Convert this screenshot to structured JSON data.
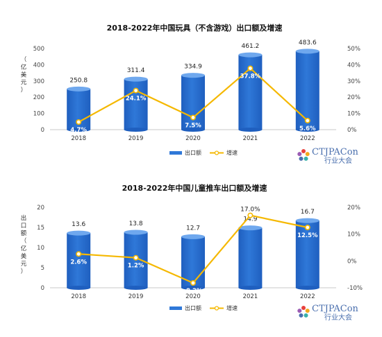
{
  "colors": {
    "bar_top": "#6fa8ee",
    "bar_body": "#2f78d8",
    "bar_dark": "#1f5fbf",
    "line": "#f5b800",
    "marker_fill": "#ffffff",
    "logo": "#4a6fae"
  },
  "logo": {
    "name": "CTJPACon",
    "subtitle": "行业大会"
  },
  "chart_data": [
    {
      "type": "bar",
      "title": "2018-2022年中国玩具（不含游戏）出口额及增速",
      "categories": [
        "2018",
        "2019",
        "2020",
        "2021",
        "2022"
      ],
      "ylabel": "（亿美元）",
      "ylim": [
        0,
        500
      ],
      "yticks": [
        "0",
        "100",
        "200",
        "300",
        "400",
        "500"
      ],
      "y2lim": [
        0,
        50
      ],
      "y2ticks": [
        "0%",
        "10%",
        "20%",
        "30%",
        "40%",
        "50%"
      ],
      "series": [
        {
          "name": "出口额",
          "kind": "bar",
          "values": [
            250.8,
            311.4,
            334.9,
            461.2,
            483.6
          ],
          "labels": [
            "250.8",
            "311.4",
            "334.9",
            "461.2",
            "483.6"
          ]
        },
        {
          "name": "增速",
          "kind": "line",
          "values": [
            4.7,
            24.1,
            7.5,
            37.8,
            5.6
          ],
          "labels": [
            "4.7%",
            "24.1%",
            "7.5%",
            "37.8%",
            "5.6%"
          ]
        }
      ],
      "legend": "bottom"
    },
    {
      "type": "bar",
      "title": "2018-2022年中国儿童推车出口额及增速",
      "categories": [
        "2018",
        "2019",
        "2020",
        "2021",
        "2022"
      ],
      "ylabel": "出口额（亿美元）",
      "ylim": [
        0,
        20
      ],
      "yticks": [
        "0",
        "5",
        "10",
        "15",
        "20"
      ],
      "y2lim": [
        -10,
        20
      ],
      "y2ticks": [
        "-10%",
        "0%",
        "10%",
        "20%"
      ],
      "series": [
        {
          "name": "出口额",
          "kind": "bar",
          "values": [
            13.6,
            13.8,
            12.7,
            14.9,
            16.7
          ],
          "labels": [
            "13.6",
            "13.8",
            "12.7",
            "14.9",
            "16.7"
          ]
        },
        {
          "name": "增速",
          "kind": "line",
          "values": [
            2.6,
            1.2,
            -8.2,
            17.0,
            12.5
          ],
          "labels": [
            "2.6%",
            "1.2%",
            "-8.2%",
            "17.0%",
            "12.5%"
          ]
        }
      ],
      "legend": "bottom"
    }
  ]
}
